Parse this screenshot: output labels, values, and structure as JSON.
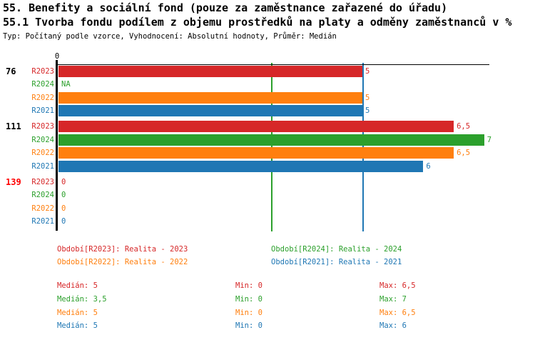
{
  "header": {
    "title_line1": "55. Benefity a sociální fond (pouze za zaměstnance zařazené do úřadu)",
    "title_line2": "55.1 Tvorba fondu podílem z objemu prostředků na platy a odměny zaměstnanců v %",
    "meta_line": "Typ: Počítaný podle vzorce, Vyhodnocení: Absolutní hodnoty, Průměr: Medián"
  },
  "colors": {
    "R2023": "#d62728",
    "R2024": "#2ca02c",
    "R2022": "#ff7f0e",
    "R2021": "#1f77b4",
    "alert_group_label": "#ff0000",
    "normal_group_label": "#000000",
    "axis": "#000000"
  },
  "chart_data": {
    "type": "bar",
    "orientation": "horizontal",
    "x_axis": {
      "tick_label": "0",
      "min": 0,
      "max": 7.1,
      "grid": false
    },
    "series_order": [
      "R2023",
      "R2024",
      "R2022",
      "R2021"
    ],
    "groups": [
      {
        "label": "76",
        "label_alert": false,
        "bars": [
          {
            "series": "R2023",
            "value": 5,
            "value_label": "5"
          },
          {
            "series": "R2024",
            "value": null,
            "value_label": "NA"
          },
          {
            "series": "R2022",
            "value": 5,
            "value_label": "5"
          },
          {
            "series": "R2021",
            "value": 5,
            "value_label": "5"
          }
        ]
      },
      {
        "label": "111",
        "label_alert": false,
        "bars": [
          {
            "series": "R2023",
            "value": 6.5,
            "value_label": "6,5"
          },
          {
            "series": "R2024",
            "value": 7,
            "value_label": "7"
          },
          {
            "series": "R2022",
            "value": 6.5,
            "value_label": "6,5"
          },
          {
            "series": "R2021",
            "value": 6,
            "value_label": "6"
          }
        ]
      },
      {
        "label": "139",
        "label_alert": true,
        "bars": [
          {
            "series": "R2023",
            "value": 0,
            "value_label": "0"
          },
          {
            "series": "R2024",
            "value": 0,
            "value_label": "0"
          },
          {
            "series": "R2022",
            "value": 0,
            "value_label": "0"
          },
          {
            "series": "R2021",
            "value": 0,
            "value_label": "0"
          }
        ]
      }
    ],
    "reference_lines": [
      {
        "series": "R2024",
        "value": 3.5
      },
      {
        "series": "R2021",
        "value": 5
      }
    ],
    "legend_position": "bottom"
  },
  "legend": [
    {
      "series": "R2023",
      "label": "Období[R2023]: Realita - 2023"
    },
    {
      "series": "R2024",
      "label": "Období[R2024]: Realita - 2024"
    },
    {
      "series": "R2022",
      "label": "Období[R2022]: Realita - 2022"
    },
    {
      "series": "R2021",
      "label": "Období[R2021]: Realita - 2021"
    }
  ],
  "stats": [
    {
      "series": "R2023",
      "median": "Medián: 5",
      "min": "Min: 0",
      "max": "Max: 6,5"
    },
    {
      "series": "R2024",
      "median": "Medián: 3,5",
      "min": "Min: 0",
      "max": "Max: 7"
    },
    {
      "series": "R2022",
      "median": "Medián: 5",
      "min": "Min: 0",
      "max": "Max: 6,5"
    },
    {
      "series": "R2021",
      "median": "Medián: 5",
      "min": "Min: 0",
      "max": "Max: 6"
    }
  ]
}
